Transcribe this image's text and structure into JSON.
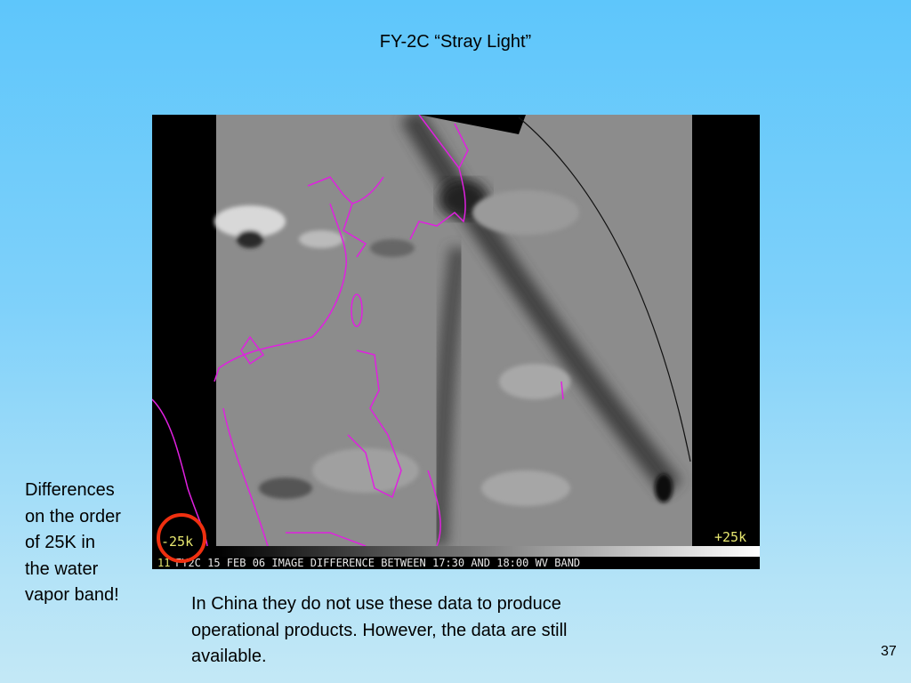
{
  "slide": {
    "title": "FY-2C “Stray Light”",
    "side_note": [
      "Differences",
      "on the order",
      "of 25K in",
      "the water",
      "vapor band!"
    ],
    "caption": [
      "In China they do not use these data to produce",
      "operational products.  However, the data are still",
      "available."
    ],
    "page_number": "37"
  },
  "figure": {
    "scale_min_label": "-25k",
    "scale_max_label": "+25k",
    "frame_number": "11",
    "image_caption": "FY2C 15 FEB 06 IMAGE DIFFERENCE BETWEEN 17:30 AND 18:00 WV BAND",
    "coastline_color": "#e020e0",
    "highlight_circle_color": "#f03010"
  }
}
